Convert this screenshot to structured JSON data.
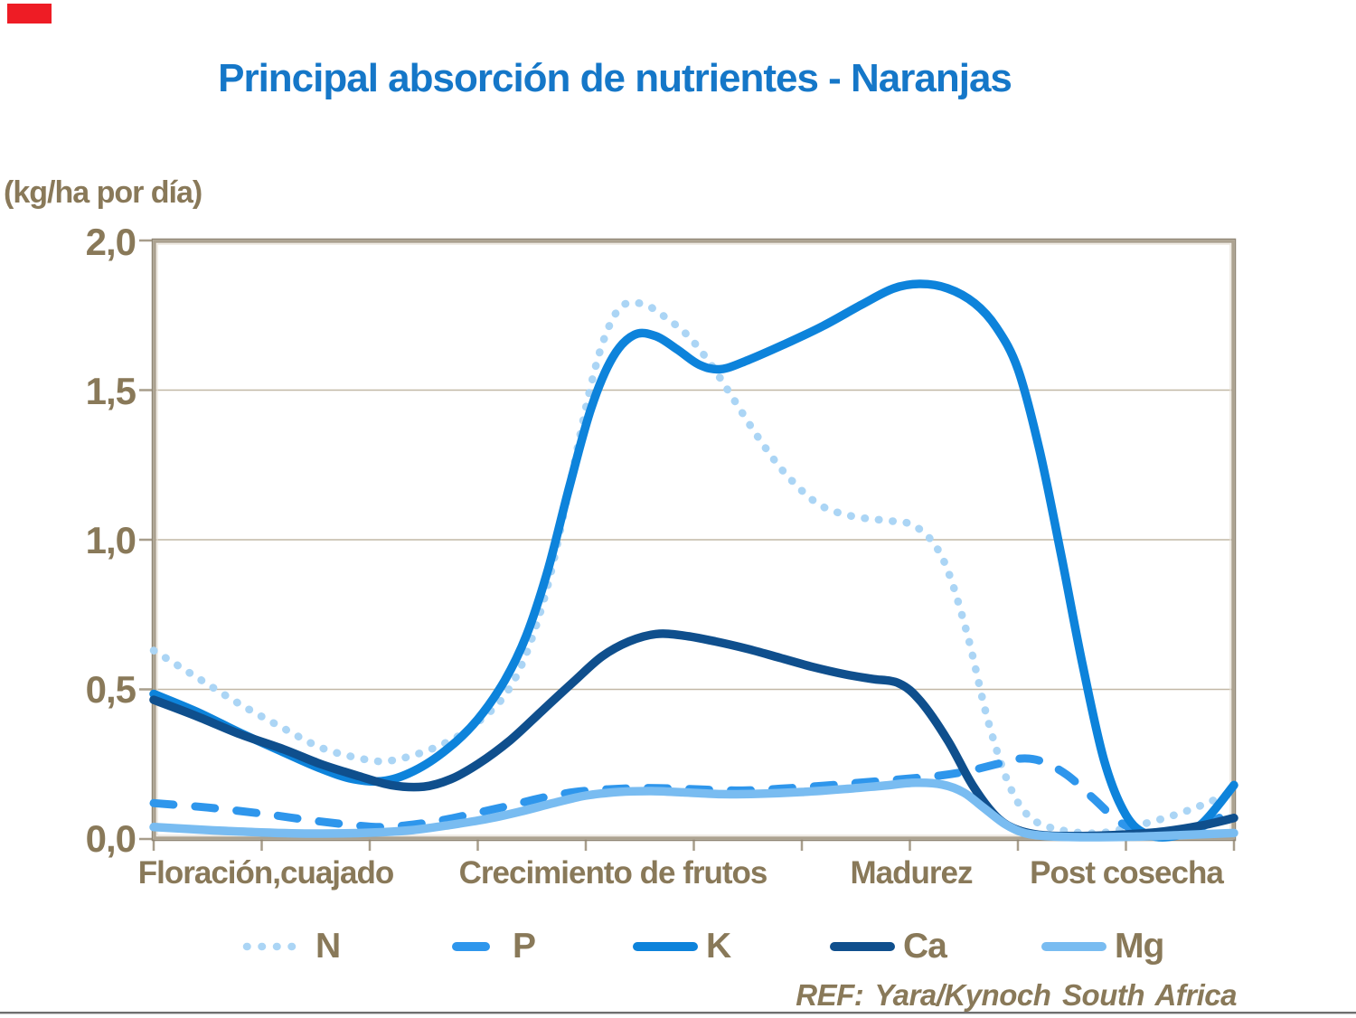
{
  "page": {
    "accent_block_color": "#EE1C25",
    "title_color": "#1577C8",
    "text_color": "#897959"
  },
  "chart_data": {
    "type": "line",
    "title": "Principal absorción de nutrientes - Naranjas",
    "ylabel": "(kg/ha por día)",
    "xlabel": "",
    "grid": "horizontal",
    "legend_position": "bottom",
    "ref": "REF: Yara/Kynoch South Africa",
    "y_axis": {
      "min": 0,
      "max": 2,
      "ticks": [
        {
          "value": 0.0,
          "label": "0,0"
        },
        {
          "value": 0.5,
          "label": "0,5"
        },
        {
          "value": 1.0,
          "label": "1,0"
        },
        {
          "value": 1.5,
          "label": "1,5"
        },
        {
          "value": 2.0,
          "label": "2,0"
        }
      ]
    },
    "x_axis": {
      "categories": [
        "Floración,cuajado",
        "Crecimiento de frutos",
        "Madurez",
        "Post cosecha"
      ],
      "tick_count": 11
    },
    "frame": {
      "border_color": "#ACA290",
      "inner_highlight_color": "#E6E0D4",
      "gridline_color": "#C2B8A6",
      "tick_color": "#A79D8B"
    },
    "series": [
      {
        "name": "N",
        "style": "dotted",
        "color": "#ABD5F5",
        "points": [
          [
            0,
            0.63
          ],
          [
            0.04,
            0.54
          ],
          [
            0.08,
            0.45
          ],
          [
            0.12,
            0.37
          ],
          [
            0.155,
            0.305
          ],
          [
            0.19,
            0.27
          ],
          [
            0.215,
            0.26
          ],
          [
            0.245,
            0.285
          ],
          [
            0.275,
            0.33
          ],
          [
            0.3,
            0.39
          ],
          [
            0.325,
            0.48
          ],
          [
            0.345,
            0.62
          ],
          [
            0.365,
            0.85
          ],
          [
            0.385,
            1.18
          ],
          [
            0.405,
            1.52
          ],
          [
            0.42,
            1.7
          ],
          [
            0.435,
            1.785
          ],
          [
            0.455,
            1.785
          ],
          [
            0.475,
            1.74
          ],
          [
            0.495,
            1.68
          ],
          [
            0.515,
            1.59
          ],
          [
            0.535,
            1.48
          ],
          [
            0.56,
            1.34
          ],
          [
            0.585,
            1.22
          ],
          [
            0.615,
            1.12
          ],
          [
            0.645,
            1.08
          ],
          [
            0.675,
            1.065
          ],
          [
            0.705,
            1.045
          ],
          [
            0.73,
            0.94
          ],
          [
            0.752,
            0.7
          ],
          [
            0.772,
            0.4
          ],
          [
            0.792,
            0.18
          ],
          [
            0.812,
            0.07
          ],
          [
            0.84,
            0.03
          ],
          [
            0.875,
            0.02
          ],
          [
            0.91,
            0.045
          ],
          [
            0.945,
            0.08
          ],
          [
            0.975,
            0.12
          ],
          [
            1,
            0.16
          ]
        ]
      },
      {
        "name": "P",
        "style": "dashed",
        "color": "#2E96EC",
        "points": [
          [
            0,
            0.12
          ],
          [
            0.05,
            0.105
          ],
          [
            0.1,
            0.085
          ],
          [
            0.14,
            0.065
          ],
          [
            0.18,
            0.048
          ],
          [
            0.21,
            0.04
          ],
          [
            0.24,
            0.048
          ],
          [
            0.27,
            0.065
          ],
          [
            0.3,
            0.088
          ],
          [
            0.33,
            0.112
          ],
          [
            0.36,
            0.138
          ],
          [
            0.39,
            0.157
          ],
          [
            0.42,
            0.166
          ],
          [
            0.45,
            0.17
          ],
          [
            0.48,
            0.169
          ],
          [
            0.51,
            0.165
          ],
          [
            0.545,
            0.162
          ],
          [
            0.58,
            0.168
          ],
          [
            0.62,
            0.178
          ],
          [
            0.66,
            0.19
          ],
          [
            0.7,
            0.202
          ],
          [
            0.73,
            0.213
          ],
          [
            0.755,
            0.228
          ],
          [
            0.78,
            0.25
          ],
          [
            0.8,
            0.268
          ],
          [
            0.82,
            0.262
          ],
          [
            0.845,
            0.215
          ],
          [
            0.87,
            0.135
          ],
          [
            0.893,
            0.06
          ],
          [
            0.915,
            0.022
          ],
          [
            0.94,
            0.013
          ],
          [
            0.962,
            0.028
          ],
          [
            0.982,
            0.062
          ],
          [
            1,
            0.1
          ]
        ]
      },
      {
        "name": "K",
        "style": "solid",
        "color": "#0D83DB",
        "points": [
          [
            0,
            0.485
          ],
          [
            0.04,
            0.425
          ],
          [
            0.08,
            0.355
          ],
          [
            0.12,
            0.29
          ],
          [
            0.155,
            0.235
          ],
          [
            0.185,
            0.2
          ],
          [
            0.215,
            0.195
          ],
          [
            0.245,
            0.235
          ],
          [
            0.275,
            0.31
          ],
          [
            0.3,
            0.4
          ],
          [
            0.325,
            0.53
          ],
          [
            0.345,
            0.68
          ],
          [
            0.365,
            0.9
          ],
          [
            0.385,
            1.18
          ],
          [
            0.405,
            1.44
          ],
          [
            0.425,
            1.61
          ],
          [
            0.445,
            1.685
          ],
          [
            0.465,
            1.68
          ],
          [
            0.485,
            1.635
          ],
          [
            0.505,
            1.585
          ],
          [
            0.525,
            1.57
          ],
          [
            0.55,
            1.6
          ],
          [
            0.585,
            1.655
          ],
          [
            0.62,
            1.715
          ],
          [
            0.655,
            1.785
          ],
          [
            0.685,
            1.84
          ],
          [
            0.71,
            1.855
          ],
          [
            0.735,
            1.84
          ],
          [
            0.76,
            1.79
          ],
          [
            0.78,
            1.71
          ],
          [
            0.8,
            1.57
          ],
          [
            0.82,
            1.3
          ],
          [
            0.84,
            0.95
          ],
          [
            0.86,
            0.58
          ],
          [
            0.88,
            0.26
          ],
          [
            0.9,
            0.08
          ],
          [
            0.92,
            0.015
          ],
          [
            0.945,
            0.01
          ],
          [
            0.97,
            0.05
          ],
          [
            1,
            0.18
          ]
        ]
      },
      {
        "name": "Ca",
        "style": "solid",
        "color": "#0F4F8D",
        "points": [
          [
            0,
            0.465
          ],
          [
            0.04,
            0.41
          ],
          [
            0.08,
            0.35
          ],
          [
            0.12,
            0.3
          ],
          [
            0.155,
            0.25
          ],
          [
            0.19,
            0.21
          ],
          [
            0.22,
            0.18
          ],
          [
            0.25,
            0.175
          ],
          [
            0.275,
            0.2
          ],
          [
            0.3,
            0.25
          ],
          [
            0.33,
            0.33
          ],
          [
            0.36,
            0.43
          ],
          [
            0.39,
            0.53
          ],
          [
            0.415,
            0.61
          ],
          [
            0.44,
            0.66
          ],
          [
            0.465,
            0.685
          ],
          [
            0.49,
            0.68
          ],
          [
            0.52,
            0.66
          ],
          [
            0.55,
            0.635
          ],
          [
            0.58,
            0.605
          ],
          [
            0.61,
            0.575
          ],
          [
            0.64,
            0.55
          ],
          [
            0.665,
            0.535
          ],
          [
            0.69,
            0.52
          ],
          [
            0.71,
            0.46
          ],
          [
            0.735,
            0.33
          ],
          [
            0.758,
            0.18
          ],
          [
            0.78,
            0.075
          ],
          [
            0.8,
            0.03
          ],
          [
            0.825,
            0.012
          ],
          [
            0.86,
            0.01
          ],
          [
            0.9,
            0.015
          ],
          [
            0.935,
            0.025
          ],
          [
            0.97,
            0.045
          ],
          [
            1,
            0.07
          ]
        ]
      },
      {
        "name": "Mg",
        "style": "solid",
        "color": "#79BCF1",
        "points": [
          [
            0,
            0.04
          ],
          [
            0.05,
            0.03
          ],
          [
            0.1,
            0.022
          ],
          [
            0.15,
            0.018
          ],
          [
            0.2,
            0.021
          ],
          [
            0.24,
            0.03
          ],
          [
            0.275,
            0.047
          ],
          [
            0.31,
            0.068
          ],
          [
            0.34,
            0.092
          ],
          [
            0.37,
            0.12
          ],
          [
            0.4,
            0.145
          ],
          [
            0.43,
            0.157
          ],
          [
            0.46,
            0.16
          ],
          [
            0.49,
            0.156
          ],
          [
            0.525,
            0.15
          ],
          [
            0.56,
            0.151
          ],
          [
            0.6,
            0.157
          ],
          [
            0.64,
            0.167
          ],
          [
            0.675,
            0.178
          ],
          [
            0.705,
            0.188
          ],
          [
            0.73,
            0.182
          ],
          [
            0.75,
            0.155
          ],
          [
            0.768,
            0.105
          ],
          [
            0.788,
            0.05
          ],
          [
            0.806,
            0.02
          ],
          [
            0.83,
            0.009
          ],
          [
            0.87,
            0.006
          ],
          [
            0.91,
            0.008
          ],
          [
            0.95,
            0.013
          ],
          [
            1,
            0.02
          ]
        ]
      }
    ]
  }
}
